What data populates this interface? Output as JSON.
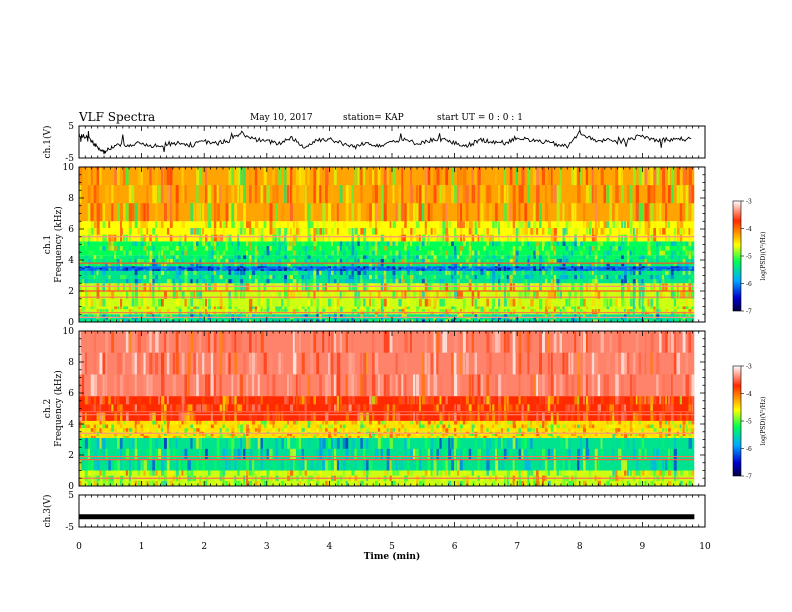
{
  "header": {
    "title": "VLF Spectra",
    "date": "May 10, 2017",
    "station": "station= KAP",
    "start": "start  UT =   0 : 0  : 1"
  },
  "colorbar": {
    "label": "log(PSD)(V²/Hz)",
    "ticks": [
      "-3",
      "-4",
      "-5",
      "-6",
      "-7"
    ],
    "colors": [
      "#ffffff",
      "#ff2a00",
      "#ffff00",
      "#00ff55",
      "#00aaff",
      "#0000cc",
      "#000044"
    ]
  },
  "chart_data": [
    {
      "type": "line",
      "name": "ch1-waveform",
      "ylabel": "ch.1(V)",
      "yticks": [
        "5",
        "-5"
      ],
      "ylim": [
        -5,
        5
      ],
      "xlim": [
        0,
        10
      ],
      "x": [
        0.0,
        0.1,
        0.2,
        0.3,
        0.4,
        0.5,
        0.6,
        0.8,
        1.0,
        1.2,
        1.4,
        1.6,
        1.8,
        2.0,
        2.2,
        2.4,
        2.6,
        2.8,
        3.0,
        3.2,
        3.4,
        3.6,
        3.8,
        4.0,
        4.2,
        4.4,
        4.6,
        4.8,
        5.0,
        5.2,
        5.4,
        5.6,
        5.8,
        6.0,
        6.2,
        6.4,
        6.6,
        6.8,
        7.0,
        7.2,
        7.4,
        7.6,
        7.8,
        8.0,
        8.2,
        8.4,
        8.6,
        8.8,
        9.0,
        9.2,
        9.4,
        9.6,
        9.8
      ],
      "y": [
        2.5,
        1.8,
        0.2,
        -1.5,
        -3.2,
        -2.0,
        -1.0,
        -0.8,
        -0.5,
        -1.2,
        -0.6,
        -0.3,
        -1.0,
        0.2,
        -0.5,
        0.5,
        2.8,
        0.8,
        0.2,
        -0.5,
        1.5,
        -1.8,
        0.6,
        1.0,
        -0.5,
        -1.5,
        -0.3,
        -1.0,
        0.1,
        0.6,
        -0.4,
        0.5,
        0.9,
        -0.4,
        -1.2,
        0.6,
        0.2,
        -0.3,
        1.4,
        0.5,
        0.2,
        -0.6,
        -1.5,
        3.0,
        0.8,
        0.5,
        -0.2,
        1.2,
        1.8,
        0.6,
        0.8,
        0.9,
        0.9
      ]
    },
    {
      "type": "heatmap",
      "name": "ch1-spectrogram",
      "ylabel": "ch.1\nFrequency (kHz)",
      "yticks": [
        0,
        2,
        4,
        6,
        8,
        10
      ],
      "ylim": [
        0,
        10
      ],
      "xlim": [
        0,
        10
      ],
      "x_extent": [
        0,
        9.83
      ],
      "bands": [
        {
          "f0": 0.0,
          "f1": 0.5,
          "value": -5.6
        },
        {
          "f0": 0.5,
          "f1": 1.0,
          "value": -5.0
        },
        {
          "f0": 1.0,
          "f1": 2.5,
          "value": -5.0
        },
        {
          "f0": 2.5,
          "f1": 3.3,
          "value": -5.6
        },
        {
          "f0": 3.3,
          "f1": 3.6,
          "value": -6.2
        },
        {
          "f0": 3.6,
          "f1": 4.3,
          "value": -5.5
        },
        {
          "f0": 4.3,
          "f1": 5.2,
          "value": -5.4
        },
        {
          "f0": 5.2,
          "f1": 6.5,
          "value": -4.9
        },
        {
          "f0": 6.5,
          "f1": 10.0,
          "value": -4.6
        }
      ],
      "lines": [
        {
          "f": 0.3,
          "value": -3.6
        },
        {
          "f": 0.6,
          "value": -3.8
        },
        {
          "f": 1.6,
          "value": -3.8
        },
        {
          "f": 2.0,
          "value": -4.0
        },
        {
          "f": 2.3,
          "value": -3.6
        },
        {
          "f": 3.8,
          "value": -4.0
        },
        {
          "f": 5.5,
          "value": -3.6
        }
      ]
    },
    {
      "type": "heatmap",
      "name": "ch2-spectrogram",
      "ylabel": "ch.2\nFrequency (kHz)",
      "yticks": [
        0,
        2,
        4,
        6,
        8,
        10
      ],
      "ylim": [
        0,
        10
      ],
      "xlim": [
        0,
        10
      ],
      "x_extent": [
        0,
        9.83
      ],
      "bands": [
        {
          "f0": 0.0,
          "f1": 1.0,
          "value": -5.0
        },
        {
          "f0": 1.0,
          "f1": 3.1,
          "value": -5.6
        },
        {
          "f0": 3.1,
          "f1": 3.5,
          "value": -4.8
        },
        {
          "f0": 3.5,
          "f1": 4.2,
          "value": -4.8
        },
        {
          "f0": 4.2,
          "f1": 5.8,
          "value": -4.2
        },
        {
          "f0": 5.8,
          "f1": 10.0,
          "value": -3.7
        }
      ],
      "lines": [
        {
          "f": 0.5,
          "value": -3.8
        },
        {
          "f": 1.7,
          "value": -3.9
        },
        {
          "f": 1.9,
          "value": -3.8
        },
        {
          "f": 3.4,
          "value": -3.6
        },
        {
          "f": 4.6,
          "value": -3.7
        },
        {
          "f": 4.8,
          "value": -3.9
        }
      ]
    },
    {
      "type": "line",
      "name": "ch3-waveform",
      "ylabel": "ch.3(V)",
      "yticks": [
        "5",
        "-5"
      ],
      "ylim": [
        -5,
        5
      ],
      "xlim": [
        0,
        10
      ],
      "x": [
        0,
        9.83
      ],
      "y": [
        -1.8,
        -1.8
      ]
    }
  ],
  "xaxis": {
    "label": "Time (min)",
    "ticks": [
      "0",
      "1",
      "2",
      "3",
      "4",
      "5",
      "6",
      "7",
      "8",
      "9",
      "10"
    ],
    "xlim": [
      0,
      10
    ]
  }
}
